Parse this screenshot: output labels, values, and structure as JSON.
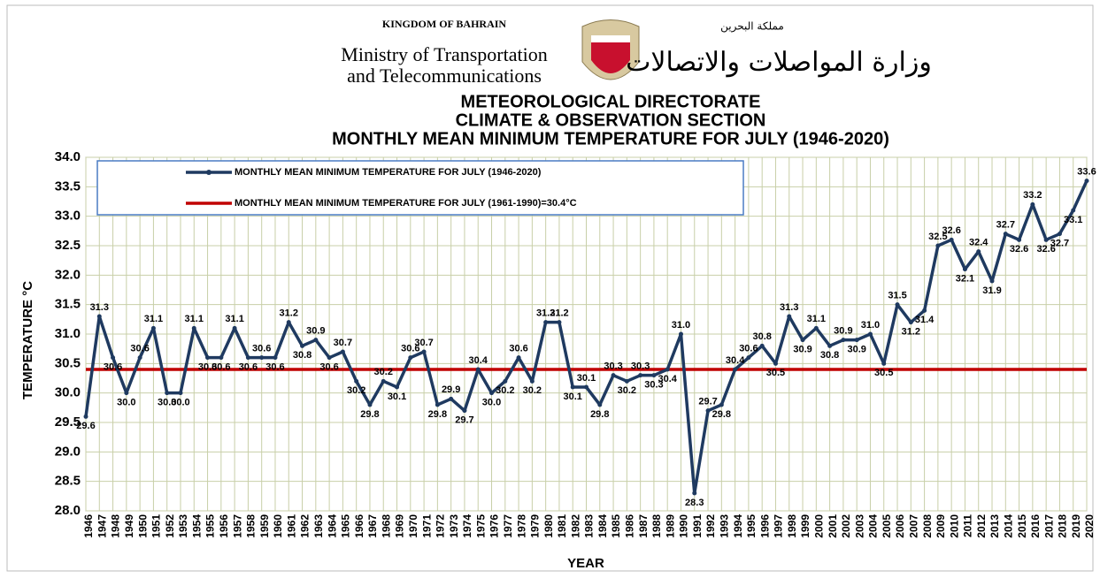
{
  "chart_data": {
    "type": "line",
    "header": {
      "kingdom": "KINGDOM OF BAHRAIN",
      "ministry_line1": "Ministry of Transportation",
      "ministry_line2": "and Telecommunications",
      "kingdom_ar": "مملكة البحرين",
      "ministry_ar": "وزارة المواصلات والاتصالات"
    },
    "title": [
      "METEOROLOGICAL DIRECTORATE",
      "CLIMATE & OBSERVATION SECTION",
      "MONTHLY MEAN MINIMUM  TEMPERATURE FOR JULY (1946-2020)"
    ],
    "y_label": "TEMPERATURE °C",
    "x_label": "YEAR",
    "categories": [
      "1946",
      "1947",
      "1948",
      "1949",
      "1950",
      "1951",
      "1952",
      "1953",
      "1954",
      "1955",
      "1956",
      "1957",
      "1958",
      "1959",
      "1960",
      "1961",
      "1962",
      "1963",
      "1964",
      "1965",
      "1966",
      "1967",
      "1968",
      "1969",
      "1970",
      "1971",
      "1972",
      "1973",
      "1974",
      "1975",
      "1976",
      "1977",
      "1978",
      "1979",
      "1980",
      "1981",
      "1982",
      "1983",
      "1984",
      "1985",
      "1986",
      "1987",
      "1988",
      "1989",
      "1990",
      "1991",
      "1992",
      "1993",
      "1994",
      "1995",
      "1996",
      "1997",
      "1998",
      "1999",
      "2000",
      "2001",
      "2002",
      "2003",
      "2004",
      "2005",
      "2006",
      "2007",
      "2008",
      "2009",
      "2010",
      "2011",
      "2012",
      "2013",
      "2014",
      "2015",
      "2016",
      "2017",
      "2018",
      "2019",
      "2020"
    ],
    "series": [
      {
        "name": "MONTHLY MEAN MINIMUM TEMPERATURE FOR JULY (1946-2020)",
        "color": "#1f3a60",
        "values": [
          29.6,
          31.3,
          30.6,
          30.0,
          30.6,
          31.1,
          30.0,
          30.0,
          31.1,
          30.6,
          30.6,
          31.1,
          30.6,
          30.6,
          30.6,
          31.2,
          30.8,
          30.9,
          30.6,
          30.7,
          30.2,
          29.8,
          30.2,
          30.1,
          30.6,
          30.7,
          29.8,
          29.9,
          29.7,
          30.4,
          30.0,
          30.2,
          30.6,
          30.2,
          31.2,
          31.2,
          30.1,
          30.1,
          29.8,
          30.3,
          30.2,
          30.3,
          30.3,
          30.4,
          31.0,
          28.3,
          29.7,
          29.8,
          30.4,
          30.6,
          30.8,
          30.5,
          31.3,
          30.9,
          31.1,
          30.8,
          30.9,
          30.9,
          31.0,
          30.5,
          31.5,
          31.2,
          31.4,
          32.5,
          32.6,
          32.1,
          32.4,
          31.9,
          32.7,
          32.6,
          33.2,
          32.6,
          32.7,
          33.1,
          33.6
        ],
        "value_labels": [
          "29.6",
          "31.3",
          "30.6",
          "30.0",
          "30.6",
          "31.1",
          "30.0",
          "30.0",
          "31.1",
          "30.6",
          "30.6",
          "31.1",
          "30.6",
          "30.6",
          "30.6",
          "31.2",
          "30.8",
          "30.9",
          "30.6",
          "30.7",
          "30.2",
          "29.8",
          "30.2",
          "30.1",
          "30.6",
          "30.7",
          "29.8",
          "29.9",
          "29.7",
          "30.4",
          "30.0",
          "30.2",
          "30.6",
          "30.2",
          "31.2",
          "31.2",
          "30.1",
          "30.1",
          "29.8",
          "30.3",
          "30.2",
          "30.3",
          "30.3",
          "30.4",
          "31.0",
          "28.3",
          "29.7",
          "29.8",
          "30.4",
          "30.6",
          "30.8",
          "30.5",
          "31.3",
          "30.9",
          "31.1",
          "30.8",
          "30.9",
          "30.9",
          "31.0",
          "30.5",
          "31.5",
          "31.2",
          "31.4",
          "32.5",
          "32.6",
          "32.1",
          "32.4",
          "31.9",
          "32.7",
          "32.6",
          "33.2",
          "32.6",
          "32.7",
          "33.1",
          "33.6"
        ]
      }
    ],
    "reference_line": {
      "name": "MONTHLY MEAN MINIMUM TEMPERATURE FOR JULY (1961-1990)=30.4°C",
      "value": 30.4,
      "color": "#c00000"
    },
    "ylim": [
      28.0,
      34.0
    ],
    "yticks": [
      {
        "value": 28.0,
        "label": "28.0"
      },
      {
        "value": 28.5,
        "label": "28.5"
      },
      {
        "value": 29.0,
        "label": "29.0"
      },
      {
        "value": 29.5,
        "label": "29.5"
      },
      {
        "value": 30.0,
        "label": "30.0"
      },
      {
        "value": 30.5,
        "label": "30.5"
      },
      {
        "value": 31.0,
        "label": "31.0"
      },
      {
        "value": 31.5,
        "label": "31.5"
      },
      {
        "value": 32.0,
        "label": "32.0"
      },
      {
        "value": 32.5,
        "label": "32.5"
      },
      {
        "value": 33.0,
        "label": "33.0"
      },
      {
        "value": 33.5,
        "label": "33.5"
      },
      {
        "value": 34.0,
        "label": "34.0"
      }
    ],
    "grid": true,
    "legend": "top-left"
  }
}
